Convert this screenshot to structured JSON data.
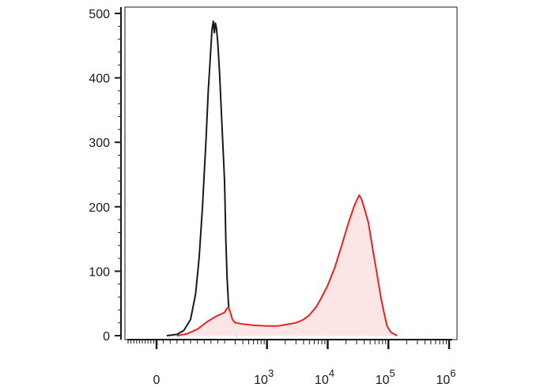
{
  "chart_data": {
    "type": "line",
    "title": "",
    "xlabel": "",
    "ylabel": "",
    "x_scale": "biexponential",
    "ylim": [
      0,
      500
    ],
    "grid": false,
    "legend": "none",
    "y_ticks": [
      {
        "value": 0,
        "label": "0"
      },
      {
        "value": 100,
        "label": "100"
      },
      {
        "value": 200,
        "label": "200"
      },
      {
        "value": 300,
        "label": "300"
      },
      {
        "value": 400,
        "label": "400"
      },
      {
        "value": 500,
        "label": "500"
      }
    ],
    "x_ticks": [
      {
        "value": 0,
        "label": "0",
        "exp": ""
      },
      {
        "value": 1000,
        "label": "10",
        "exp": "3"
      },
      {
        "value": 10000,
        "label": "10",
        "exp": "4"
      },
      {
        "value": 100000,
        "label": "10",
        "exp": "5"
      },
      {
        "value": 1000000,
        "label": "10",
        "exp": "6"
      }
    ],
    "series": [
      {
        "color": "#1a1a1a",
        "fill": "none",
        "points": [
          [
            30,
            0
          ],
          [
            60,
            2
          ],
          [
            80,
            8
          ],
          [
            100,
            25
          ],
          [
            115,
            65
          ],
          [
            125,
            120
          ],
          [
            135,
            200
          ],
          [
            145,
            300
          ],
          [
            152,
            380
          ],
          [
            158,
            430
          ],
          [
            163,
            475
          ],
          [
            167,
            488
          ],
          [
            170,
            470
          ],
          [
            173,
            485
          ],
          [
            176,
            478
          ],
          [
            180,
            455
          ],
          [
            185,
            410
          ],
          [
            192,
            330
          ],
          [
            200,
            240
          ],
          [
            210,
            150
          ],
          [
            220,
            90
          ],
          [
            232,
            50
          ],
          [
            245,
            25
          ],
          [
            260,
            10
          ],
          [
            290,
            3
          ],
          [
            320,
            0
          ]
        ]
      },
      {
        "color": "#e52421",
        "fill": "#fbe5e5",
        "points": [
          [
            60,
            0
          ],
          [
            90,
            3
          ],
          [
            120,
            10
          ],
          [
            150,
            22
          ],
          [
            175,
            30
          ],
          [
            200,
            36
          ],
          [
            215,
            41
          ],
          [
            230,
            44
          ],
          [
            245,
            38
          ],
          [
            270,
            25
          ],
          [
            300,
            20
          ],
          [
            400,
            18
          ],
          [
            600,
            16
          ],
          [
            1000,
            15
          ],
          [
            1500,
            15
          ],
          [
            2000,
            17
          ],
          [
            3000,
            20
          ],
          [
            4000,
            25
          ],
          [
            5000,
            32
          ],
          [
            6500,
            45
          ],
          [
            8000,
            60
          ],
          [
            10000,
            78
          ],
          [
            13000,
            105
          ],
          [
            17000,
            140
          ],
          [
            22000,
            175
          ],
          [
            27000,
            200
          ],
          [
            30000,
            210
          ],
          [
            33000,
            218
          ],
          [
            36000,
            212
          ],
          [
            40000,
            198
          ],
          [
            47000,
            175
          ],
          [
            55000,
            135
          ],
          [
            65000,
            95
          ],
          [
            75000,
            60
          ],
          [
            85000,
            35
          ],
          [
            95000,
            15
          ],
          [
            110000,
            5
          ],
          [
            140000,
            0
          ]
        ]
      }
    ]
  }
}
